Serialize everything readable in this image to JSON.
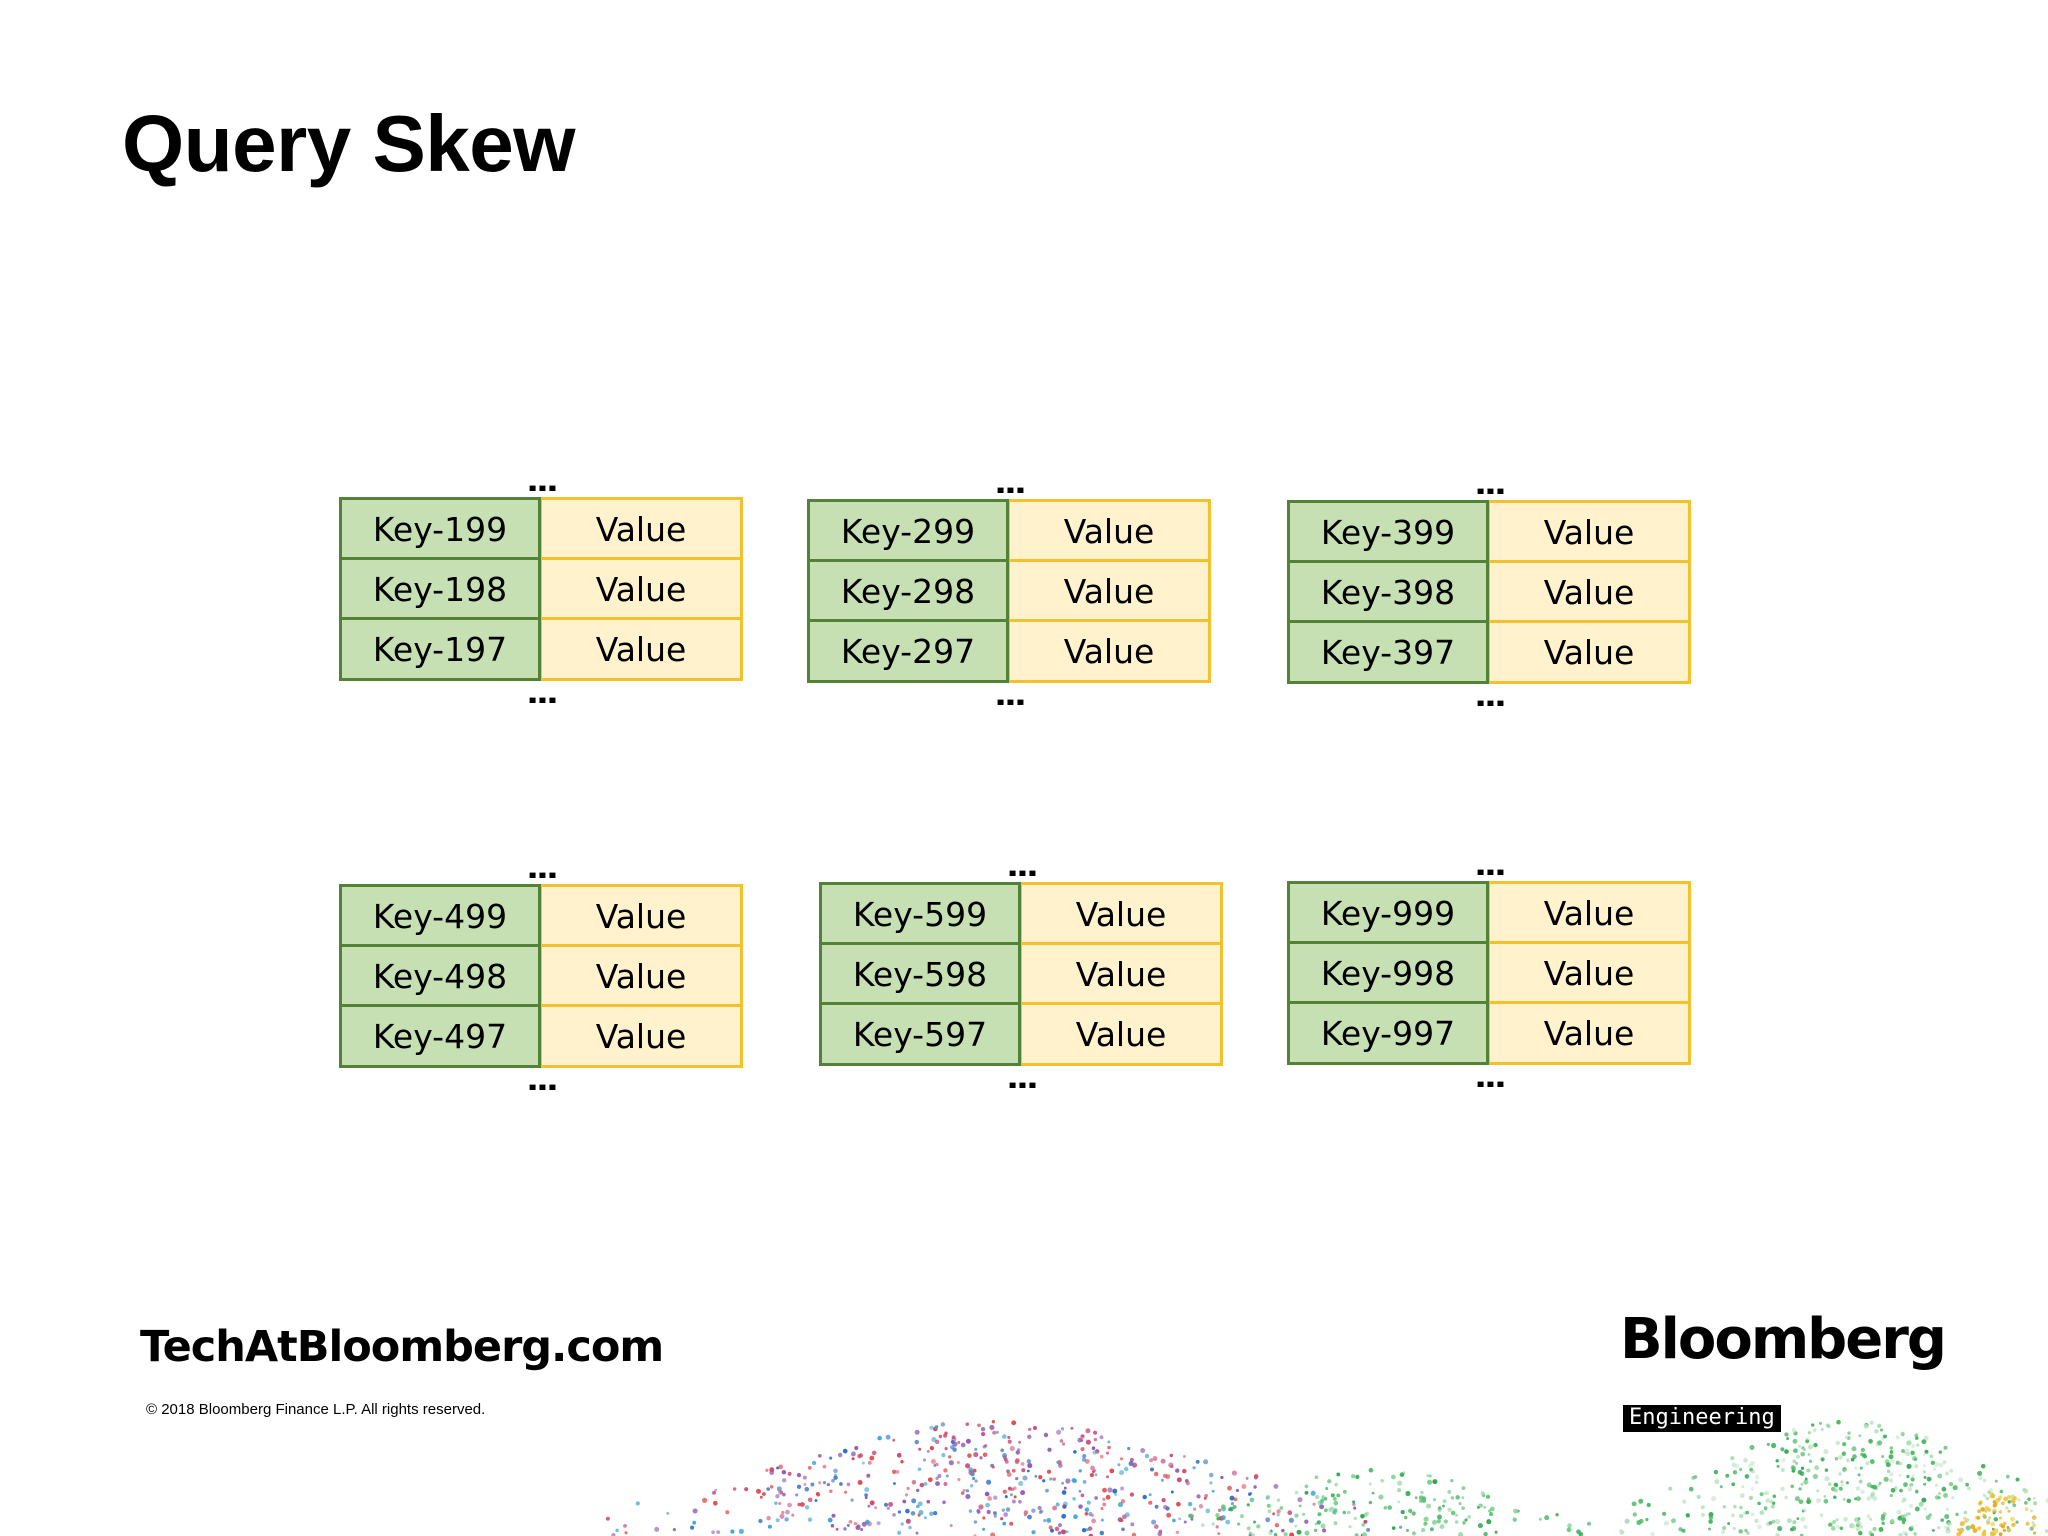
{
  "title": "Query Skew",
  "ellipsis": "...",
  "tables": [
    {
      "rows": [
        {
          "key": "Key-199",
          "value": "Value"
        },
        {
          "key": "Key-198",
          "value": "Value"
        },
        {
          "key": "Key-197",
          "value": "Value"
        }
      ]
    },
    {
      "rows": [
        {
          "key": "Key-299",
          "value": "Value"
        },
        {
          "key": "Key-298",
          "value": "Value"
        },
        {
          "key": "Key-297",
          "value": "Value"
        }
      ]
    },
    {
      "rows": [
        {
          "key": "Key-399",
          "value": "Value"
        },
        {
          "key": "Key-398",
          "value": "Value"
        },
        {
          "key": "Key-397",
          "value": "Value"
        }
      ]
    },
    {
      "rows": [
        {
          "key": "Key-499",
          "value": "Value"
        },
        {
          "key": "Key-498",
          "value": "Value"
        },
        {
          "key": "Key-497",
          "value": "Value"
        }
      ]
    },
    {
      "rows": [
        {
          "key": "Key-599",
          "value": "Value"
        },
        {
          "key": "Key-598",
          "value": "Value"
        },
        {
          "key": "Key-597",
          "value": "Value"
        }
      ]
    },
    {
      "rows": [
        {
          "key": "Key-999",
          "value": "Value"
        },
        {
          "key": "Key-998",
          "value": "Value"
        },
        {
          "key": "Key-997",
          "value": "Value"
        }
      ]
    }
  ],
  "footer": {
    "url": "TechAtBloomberg.com",
    "copyright": "© 2018 Bloomberg Finance L.P. All rights reserved.",
    "logo": "Bloomberg",
    "tag": "Engineering"
  },
  "colors": {
    "key_fill": "#c6e0b4",
    "key_border": "#538135",
    "value_fill": "#fff2cc",
    "value_border": "#f2c12e"
  }
}
